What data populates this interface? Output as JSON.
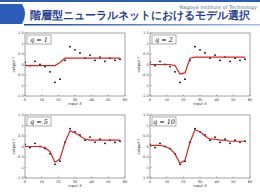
{
  "header": {
    "title": "階層型ニューラルネットにおけるモデル選択",
    "institution": "Nagoya Institute of Technology"
  },
  "chart_data": [
    {
      "type": "scatter",
      "title": "q = 1",
      "x_label": "input X",
      "y_label": "output Y",
      "grid": false,
      "x": [
        0,
        3,
        6,
        9,
        12,
        15,
        18,
        21,
        24,
        27,
        30,
        33,
        36,
        39,
        42,
        45,
        48,
        51,
        54,
        57
      ],
      "xlim": [
        0,
        60
      ],
      "xticks": [
        0,
        10,
        20,
        30,
        40,
        50,
        60
      ],
      "ylim": [
        -1.5,
        1.5
      ],
      "yticks": [
        -1.5,
        -1,
        -0.5,
        0,
        0.5,
        1,
        1.5
      ],
      "series": [
        {
          "type": "scatter",
          "color": "#000000",
          "marker": "circle",
          "values": [
            0.1,
            -0.05,
            0.15,
            0.0,
            -0.1,
            -0.35,
            -0.85,
            -0.7,
            0.2,
            0.85,
            0.7,
            0.55,
            0.3,
            0.45,
            0.2,
            0.35,
            0.15,
            0.3,
            0.2,
            0.25
          ]
        },
        {
          "type": "line",
          "color": "#e02020",
          "line_style": "solid",
          "values": [
            -0.05,
            -0.05,
            -0.05,
            -0.05,
            -0.05,
            -0.05,
            -0.05,
            0.1,
            0.3,
            0.3,
            0.3,
            0.3,
            0.3,
            0.3,
            0.3,
            0.3,
            0.3,
            0.3,
            0.3,
            0.3
          ]
        }
      ]
    },
    {
      "type": "scatter",
      "title": "q = 2",
      "x_label": "input X",
      "y_label": "output Y",
      "grid": false,
      "x": [
        0,
        3,
        6,
        9,
        12,
        15,
        18,
        21,
        24,
        27,
        30,
        33,
        36,
        39,
        42,
        45,
        48,
        51,
        54,
        57
      ],
      "xlim": [
        0,
        60
      ],
      "xticks": [
        0,
        10,
        20,
        30,
        40,
        50,
        60
      ],
      "ylim": [
        -1.5,
        1.5
      ],
      "yticks": [
        -1.5,
        -1,
        -0.5,
        0,
        0.5,
        1,
        1.5
      ],
      "series": [
        {
          "type": "scatter",
          "color": "#000000",
          "marker": "circle",
          "values": [
            0.1,
            -0.05,
            0.15,
            0.0,
            -0.1,
            -0.35,
            -0.85,
            -0.7,
            0.2,
            0.85,
            0.7,
            0.55,
            0.3,
            0.45,
            0.2,
            0.35,
            0.15,
            0.3,
            0.2,
            0.25
          ]
        },
        {
          "type": "line",
          "color": "#e02020",
          "line_style": "solid",
          "values": [
            0,
            0,
            0,
            0,
            0,
            -0.05,
            -0.45,
            -0.4,
            0.3,
            0.35,
            0.35,
            0.35,
            0.35,
            0.35,
            0.35,
            0.35,
            0.35,
            0.35,
            0.35,
            0.35
          ]
        }
      ]
    },
    {
      "type": "scatter",
      "title": "q = 5",
      "x_label": "input X",
      "y_label": "output Y",
      "grid": false,
      "x": [
        0,
        3,
        6,
        9,
        12,
        15,
        18,
        21,
        24,
        27,
        30,
        33,
        36,
        39,
        42,
        45,
        48,
        51,
        54,
        57
      ],
      "xlim": [
        0,
        60
      ],
      "xticks": [
        0,
        10,
        20,
        30,
        40,
        50,
        60
      ],
      "ylim": [
        -1.5,
        1.5
      ],
      "yticks": [
        -1.5,
        -1,
        -0.5,
        0,
        0.5,
        1,
        1.5
      ],
      "series": [
        {
          "type": "scatter",
          "color": "#000000",
          "marker": "circle",
          "values": [
            0.1,
            -0.05,
            0.15,
            0.0,
            -0.1,
            -0.35,
            -0.85,
            -0.7,
            0.2,
            0.85,
            0.7,
            0.55,
            0.3,
            0.45,
            0.2,
            0.35,
            0.15,
            0.3,
            0.2,
            0.25
          ]
        },
        {
          "type": "line",
          "color": "#e02020",
          "line_style": "solid",
          "values": [
            0,
            0,
            0,
            0,
            -0.05,
            -0.25,
            -0.75,
            -0.6,
            0.2,
            0.75,
            0.65,
            0.5,
            0.35,
            0.3,
            0.3,
            0.3,
            0.3,
            0.3,
            0.3,
            0.3
          ]
        }
      ]
    },
    {
      "type": "scatter",
      "title": "q = 10",
      "x_label": "input X",
      "y_label": "output Y",
      "grid": false,
      "x": [
        0,
        3,
        6,
        9,
        12,
        15,
        18,
        21,
        24,
        27,
        30,
        33,
        36,
        39,
        42,
        45,
        48,
        51,
        54,
        57
      ],
      "xlim": [
        0,
        60
      ],
      "xticks": [
        0,
        10,
        20,
        30,
        40,
        50,
        60
      ],
      "ylim": [
        -1.5,
        1.5
      ],
      "yticks": [
        -1.5,
        -1,
        -0.5,
        0,
        0.5,
        1,
        1.5
      ],
      "series": [
        {
          "type": "scatter",
          "color": "#000000",
          "marker": "circle",
          "values": [
            0.1,
            -0.05,
            0.15,
            0.0,
            -0.1,
            -0.35,
            -0.85,
            -0.7,
            0.2,
            0.85,
            0.7,
            0.55,
            0.3,
            0.45,
            0.2,
            0.35,
            0.15,
            0.3,
            0.2,
            0.25
          ]
        },
        {
          "type": "line",
          "color": "#e02020",
          "line_style": "solid",
          "values": [
            0.05,
            0.05,
            0.05,
            0.0,
            -0.1,
            -0.35,
            -0.8,
            -0.65,
            0.2,
            0.8,
            0.7,
            0.5,
            0.35,
            0.35,
            0.3,
            0.3,
            0.25,
            0.25,
            0.25,
            0.25
          ]
        }
      ]
    }
  ]
}
